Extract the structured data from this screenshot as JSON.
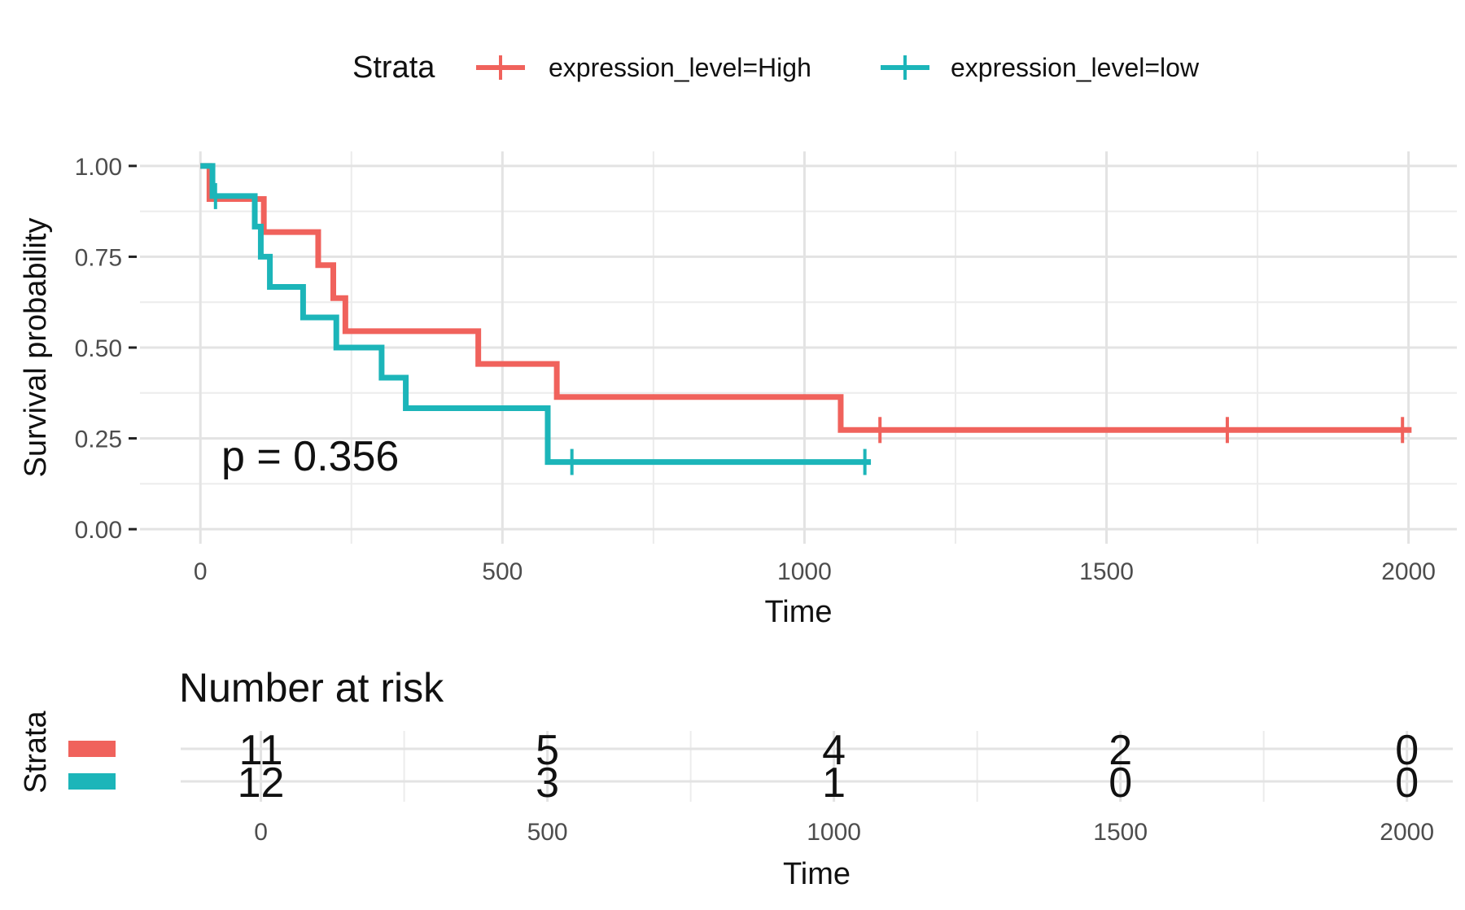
{
  "legend": {
    "title": "Strata",
    "entries": [
      {
        "label": "expression_level=High",
        "color": "#F0625C"
      },
      {
        "label": "expression_level=low",
        "color": "#1CB5B9"
      }
    ]
  },
  "chart_data": {
    "type": "line",
    "subtype": "kaplan-meier step",
    "xlabel": "Time",
    "ylabel": "Survival probability",
    "xlim": [
      -100,
      2080
    ],
    "ylim": [
      -0.04,
      1.04
    ],
    "x_ticks": [
      0,
      500,
      1000,
      1500,
      2000
    ],
    "y_ticks": [
      0.0,
      0.25,
      0.5,
      0.75,
      1.0
    ],
    "y_tick_labels": [
      "0.00",
      "0.25",
      "0.50",
      "0.75",
      "1.00"
    ],
    "grid": true,
    "legend_position": "top",
    "annotation": "p = 0.356",
    "series": [
      {
        "name": "expression_level=High",
        "color": "#F0625C",
        "steps": [
          [
            0,
            1.0
          ],
          [
            15,
            0.909
          ],
          [
            105,
            0.818
          ],
          [
            195,
            0.727
          ],
          [
            220,
            0.636
          ],
          [
            240,
            0.545
          ],
          [
            460,
            0.455
          ],
          [
            590,
            0.364
          ],
          [
            1060,
            0.273
          ],
          [
            2005,
            0.273
          ]
        ],
        "censor_x": [
          1125,
          1700,
          1990
        ]
      },
      {
        "name": "expression_level=low",
        "color": "#1CB5B9",
        "steps": [
          [
            0,
            1.0
          ],
          [
            20,
            0.917
          ],
          [
            90,
            0.833
          ],
          [
            100,
            0.75
          ],
          [
            115,
            0.667
          ],
          [
            170,
            0.583
          ],
          [
            225,
            0.5
          ],
          [
            300,
            0.417
          ],
          [
            340,
            0.333
          ],
          [
            575,
            0.25
          ],
          [
            575,
            0.185
          ],
          [
            1110,
            0.185
          ]
        ],
        "censor_x": [
          25,
          615,
          1100
        ]
      }
    ]
  },
  "risk_table": {
    "title": "Number at risk",
    "ylabel": "Strata",
    "xlabel": "Time",
    "times": [
      0,
      500,
      1000,
      1500,
      2000
    ],
    "rows": [
      {
        "name": "expression_level=High",
        "color": "#F0625C",
        "counts": [
          "11",
          "5",
          "4",
          "2",
          "0"
        ]
      },
      {
        "name": "expression_level=low",
        "color": "#1CB5B9",
        "counts": [
          "12",
          "3",
          "1",
          "0",
          "0"
        ]
      }
    ]
  }
}
